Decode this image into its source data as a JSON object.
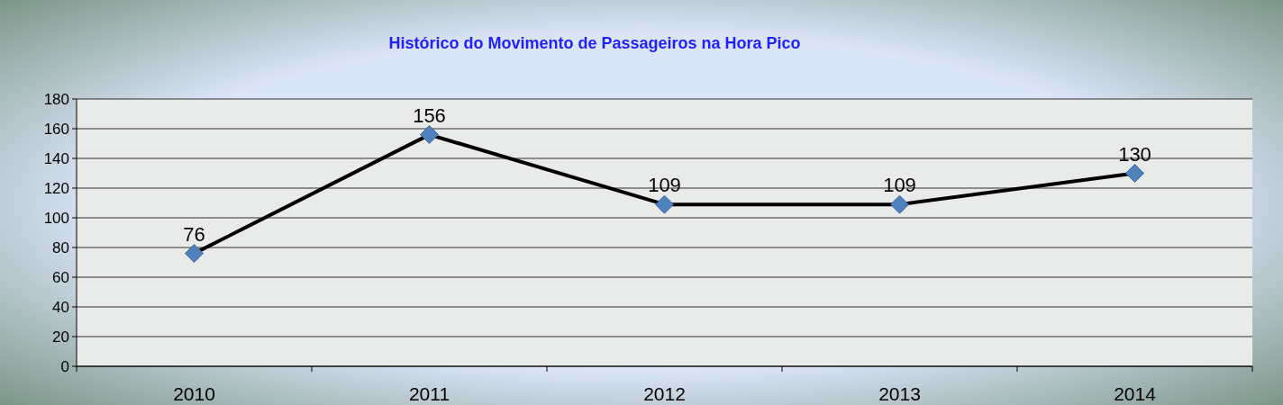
{
  "chart_data": {
    "type": "line",
    "title": "Histórico do Movimento de Passageiros na Hora Pico",
    "categories": [
      "2010",
      "2011",
      "2012",
      "2013",
      "2014"
    ],
    "series": [
      {
        "color": "#000000",
        "values": [
          76,
          156,
          109,
          109,
          130
        ]
      }
    ],
    "ylim": [
      0,
      180
    ],
    "yticks": [
      0,
      20,
      40,
      60,
      80,
      100,
      120,
      140,
      160,
      180
    ],
    "grid": "y",
    "marker": "diamond",
    "data_labels": true
  }
}
